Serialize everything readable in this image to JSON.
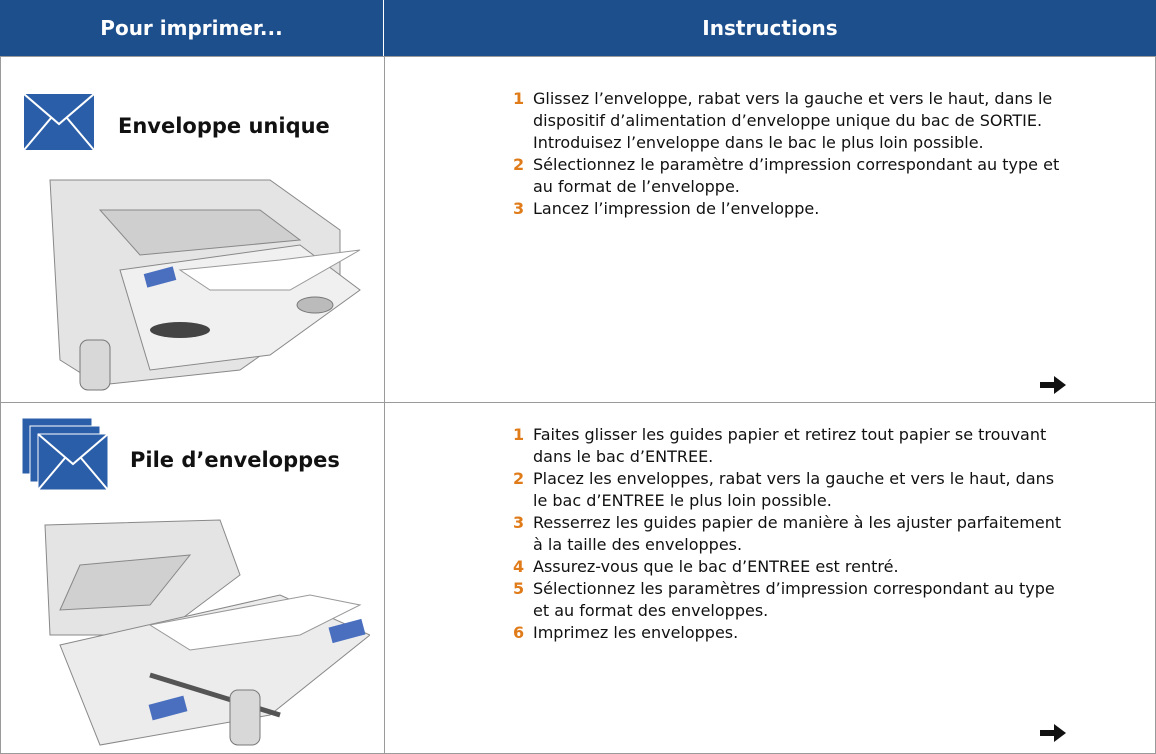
{
  "header": {
    "left": "Pour imprimer...",
    "right": "Instructions"
  },
  "rows": [
    {
      "title": "Enveloppe unique",
      "steps": [
        {
          "number": "1",
          "text": "Glissez l’enveloppe, rabat vers la gauche et vers le haut, dans le dispositif d’alimentation d’enveloppe unique du bac de SORTIE. Introduisez l’enveloppe dans le bac le plus loin possible."
        },
        {
          "number": "2",
          "text": "Sélectionnez le paramètre d’impression correspondant au type et au format de l’enveloppe."
        },
        {
          "number": "3",
          "text": "Lancez l’impression de l’enveloppe."
        }
      ]
    },
    {
      "title": "Pile d’enveloppes",
      "steps": [
        {
          "number": "1",
          "text": "Faites glisser les guides papier et retirez tout papier se trouvant dans le bac d’ENTREE."
        },
        {
          "number": "2",
          "text": "Placez les enveloppes, rabat vers la gauche et vers le haut, dans le bac d’ENTREE le plus loin possible."
        },
        {
          "number": "3",
          "text": "Resserrez les guides papier de manière à les ajuster parfaitement à la taille des enveloppes."
        },
        {
          "number": "4",
          "text": "Assurez-vous que le bac d’ENTREE est rentré."
        },
        {
          "number": "5",
          "text": "Sélectionnez les paramètres d’impression correspondant au type et au format des enveloppes."
        },
        {
          "number": "6",
          "text": "Imprimez les enveloppes."
        }
      ]
    }
  ]
}
